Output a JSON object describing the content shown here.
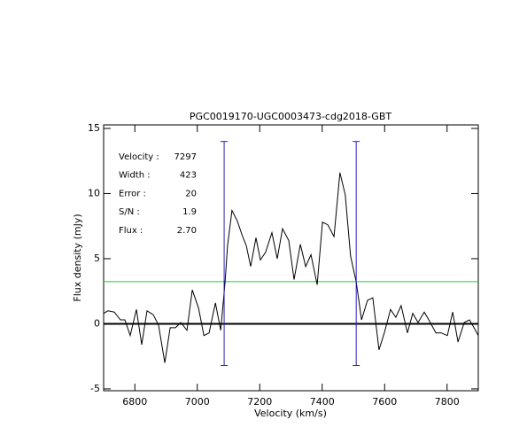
{
  "chart_data": {
    "type": "line",
    "title": "PGC0019170-UGC0003473-cdg2018-GBT",
    "xlabel": "Velocity (km/s)",
    "ylabel": "Flux density (mJy)",
    "xlim": [
      6700,
      7900
    ],
    "ylim": [
      -5.14,
      15.27
    ],
    "xticks": [
      6800,
      7000,
      7200,
      7400,
      7600,
      7800
    ],
    "yticks": [
      -5,
      0,
      5,
      10,
      15
    ],
    "color": "#000000",
    "x": [
      6700,
      6714,
      6734,
      6754,
      6768,
      6785,
      6805,
      6822,
      6839,
      6859,
      6876,
      6896,
      6913,
      6930,
      6947,
      6967,
      6984,
      7004,
      7021,
      7038,
      7058,
      7075,
      7089,
      7097,
      7111,
      7128,
      7145,
      7157,
      7171,
      7188,
      7202,
      7219,
      7239,
      7256,
      7273,
      7293,
      7310,
      7330,
      7347,
      7364,
      7384,
      7401,
      7418,
      7438,
      7457,
      7474,
      7491,
      7509,
      7526,
      7545,
      7562,
      7582,
      7599,
      7619,
      7636,
      7653,
      7673,
      7690,
      7707,
      7727,
      7744,
      7764,
      7781,
      7801,
      7818,
      7835,
      7855,
      7872,
      7891,
      7900
    ],
    "values": [
      0.8,
      1.0,
      0.9,
      0.3,
      0.3,
      -0.9,
      1.1,
      -1.6,
      1.0,
      0.7,
      -0.1,
      -3.0,
      -0.3,
      -0.3,
      0.1,
      -0.5,
      2.6,
      1.2,
      -0.9,
      -0.7,
      1.6,
      -0.5,
      3.2,
      6.0,
      8.7,
      7.9,
      6.7,
      6.0,
      4.4,
      6.6,
      4.9,
      5.5,
      7.0,
      5.0,
      7.3,
      6.4,
      3.4,
      6.1,
      4.4,
      5.3,
      3.0,
      7.8,
      7.6,
      6.7,
      11.6,
      9.9,
      5.2,
      3.2,
      0.3,
      1.8,
      2.0,
      -2.0,
      -0.7,
      1.1,
      0.5,
      1.4,
      -0.7,
      0.8,
      0.1,
      0.9,
      0.2,
      -0.7,
      -0.7,
      -0.9,
      0.9,
      -1.4,
      0.1,
      0.3,
      -0.5,
      -0.9
    ],
    "reference_lines": [
      {
        "value": 0,
        "color": "#000000"
      },
      {
        "value": 3.24,
        "color": "#22cc22"
      }
    ],
    "markers": {
      "x": [
        7086,
        7509
      ],
      "range": [
        -3.2,
        14
      ],
      "color": "#2a1fc0"
    },
    "annotations": [
      {
        "label": "Velocity :",
        "value": "7297"
      },
      {
        "label": "Width :",
        "value": "423"
      },
      {
        "label": "Error :",
        "value": "20"
      },
      {
        "label": "S/N :",
        "value": "1.9"
      },
      {
        "label": "Flux :",
        "value": "2.70"
      }
    ],
    "annotation_color": "#3010b0"
  }
}
